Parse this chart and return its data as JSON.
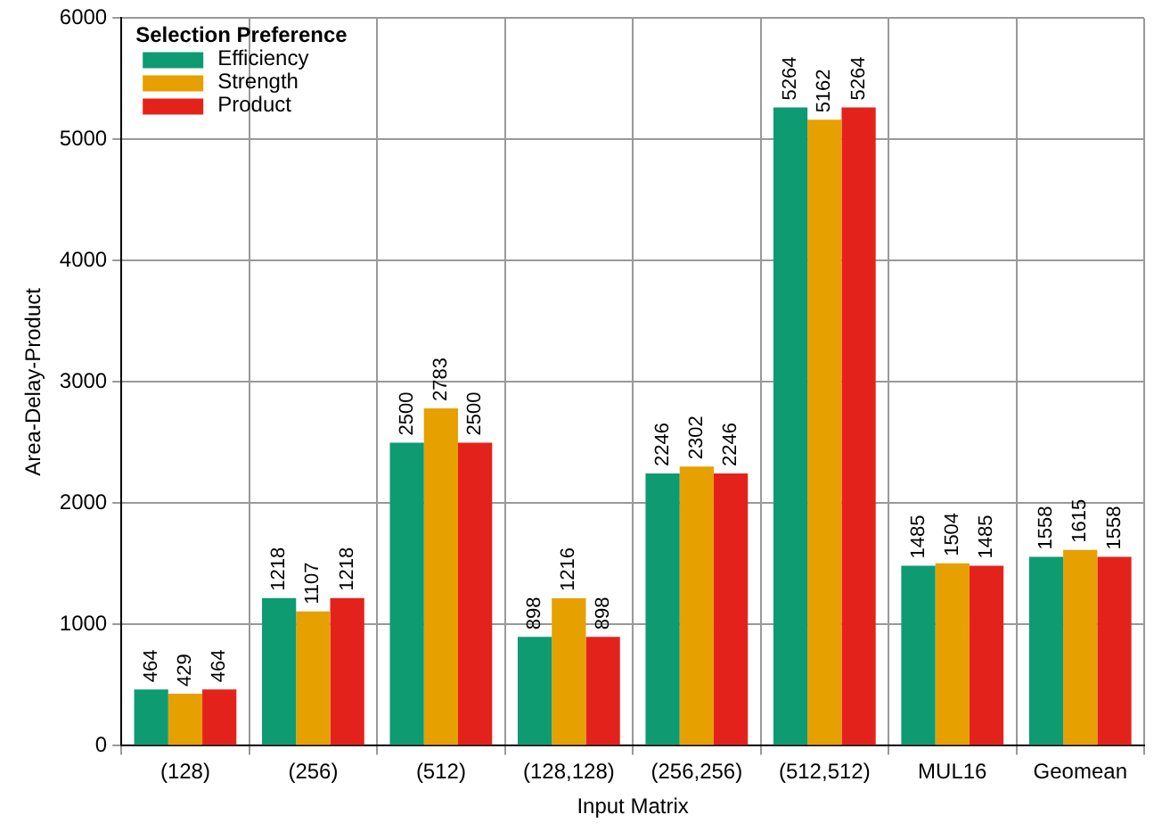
{
  "chart_data": {
    "type": "bar",
    "xlabel": "Input Matrix",
    "ylabel": "Area-Delay-Product",
    "legend_title": "Selection Preference",
    "categories": [
      "(128)",
      "(256)",
      "(512)",
      "(128,128)",
      "(256,256)",
      "(512,512)",
      "MUL16",
      "Geomean"
    ],
    "series": [
      {
        "name": "Efficiency",
        "color": "#0e9b72",
        "values": [
          464,
          1218,
          2500,
          898,
          2246,
          5264,
          1485,
          1558
        ]
      },
      {
        "name": "Strength",
        "color": "#e6a000",
        "values": [
          429,
          1107,
          2783,
          1216,
          2302,
          5162,
          1504,
          1615
        ]
      },
      {
        "name": "Product",
        "color": "#e4221c",
        "values": [
          464,
          1218,
          2500,
          898,
          2246,
          5264,
          1485,
          1558
        ]
      }
    ],
    "ylim": [
      0,
      6000
    ],
    "yticks": [
      0,
      1000,
      2000,
      3000,
      4000,
      5000,
      6000
    ],
    "grid": true,
    "legend": "top left",
    "data_labels": true
  }
}
